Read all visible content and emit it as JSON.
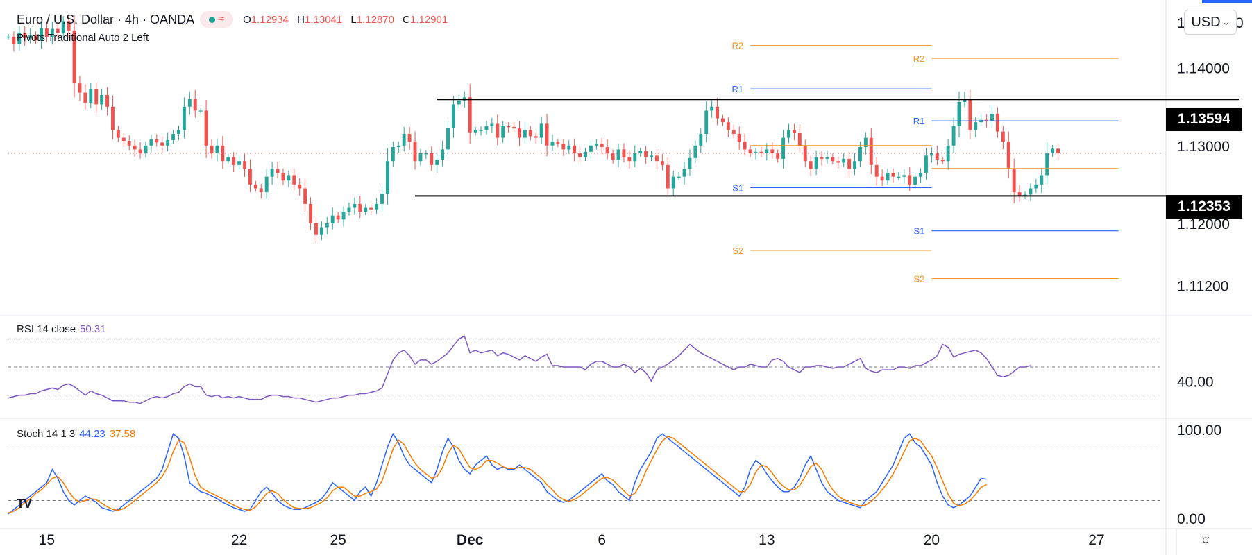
{
  "header": {
    "symbol": "Euro / U.S. Dollar · 4h · OANDA",
    "badge_icon": "wave-icon",
    "ohlc": [
      {
        "k": "O",
        "v": "1.12934"
      },
      {
        "k": "H",
        "v": "1.13041"
      },
      {
        "k": "L",
        "v": "1.12870"
      },
      {
        "k": "C",
        "v": "1.12901"
      }
    ]
  },
  "pivots_legend": "Pivots Traditional Auto 2 Left",
  "rsi_legend": {
    "label": "RSI 14 close",
    "value": "50.31"
  },
  "stoch_legend": {
    "label": "Stoch 14 1 3",
    "k": "44.23",
    "d": "37.58"
  },
  "currency_button": "USD",
  "axis_left_glyph": "1",
  "axis_right_glyph": "0",
  "price_tags": {
    "upper": "1.13594",
    "lower": "1.12353"
  },
  "colors": {
    "up": "#26a69a",
    "down": "#ef5350",
    "rsi": "#7e57c2",
    "stoch_k": "#2962ff",
    "stoch_d": "#f57c00",
    "pivot_orange": "#f7931a",
    "pivot_blue": "#2962ff"
  },
  "chart_data": {
    "type": "candlestick",
    "title": "Euro / U.S. Dollar, 4h, OANDA",
    "price_axis": {
      "range": [
        1.1084,
        1.148
      ],
      "ticks": [
        {
          "value": 1.14,
          "label": "1.14000"
        },
        {
          "value": 1.13,
          "label": "1.13000"
        },
        {
          "value": 1.12,
          "label": "1.12000"
        },
        {
          "value": 1.112,
          "label": "1.11200"
        }
      ]
    },
    "time_axis": {
      "range": [
        0,
        210
      ],
      "ticks": [
        {
          "bar": 7,
          "label": "15",
          "bold": false
        },
        {
          "bar": 42,
          "label": "22",
          "bold": false
        },
        {
          "bar": 60,
          "label": "25",
          "bold": false
        },
        {
          "bar": 84,
          "label": "Dec",
          "bold": true
        },
        {
          "bar": 108,
          "label": "6",
          "bold": false
        },
        {
          "bar": 138,
          "label": "13",
          "bold": false
        },
        {
          "bar": 168,
          "label": "20",
          "bold": false
        },
        {
          "bar": 198,
          "label": "27",
          "bold": false
        }
      ]
    },
    "range_lines": [
      {
        "value": 1.13594,
        "from_bar": 78,
        "to_bar": 210
      },
      {
        "value": 1.12353,
        "from_bar": 74,
        "to_bar": 210
      }
    ],
    "pivots": [
      {
        "label": "R2",
        "value": 1.14285,
        "from": 135,
        "to": 168,
        "color": "#f7931a"
      },
      {
        "label": "R1",
        "value": 1.13728,
        "from": 135,
        "to": 168,
        "color": "#2962ff"
      },
      {
        "label": "",
        "value": 1.13,
        "from": 135,
        "to": 168,
        "color": "#f7931a"
      },
      {
        "label": "S1",
        "value": 1.1246,
        "from": 135,
        "to": 168,
        "color": "#2962ff"
      },
      {
        "label": "S2",
        "value": 1.11653,
        "from": 135,
        "to": 168,
        "color": "#f7931a"
      },
      {
        "label": "R2",
        "value": 1.14122,
        "from": 168,
        "to": 202,
        "color": "#f7931a"
      },
      {
        "label": "R1",
        "value": 1.13318,
        "from": 168,
        "to": 202,
        "color": "#2962ff"
      },
      {
        "label": "",
        "value": 1.12705,
        "from": 168,
        "to": 202,
        "color": "#f7931a"
      },
      {
        "label": "S1",
        "value": 1.11904,
        "from": 168,
        "to": 202,
        "color": "#2962ff"
      },
      {
        "label": "S2",
        "value": 1.11291,
        "from": 168,
        "to": 202,
        "color": "#f7931a"
      }
    ],
    "last_price": 1.12901,
    "closes": [
      1.144,
      1.143,
      1.1445,
      1.1438,
      1.1442,
      1.1435,
      1.1451,
      1.144,
      1.145,
      1.1445,
      1.146,
      1.1448,
      1.138,
      1.1368,
      1.1355,
      1.1373,
      1.1353,
      1.1365,
      1.135,
      1.132,
      1.131,
      1.1306,
      1.13,
      1.1295,
      1.129,
      1.13,
      1.1308,
      1.1304,
      1.13,
      1.1307,
      1.1315,
      1.132,
      1.135,
      1.136,
      1.1345,
      1.1345,
      1.13,
      1.129,
      1.13,
      1.128,
      1.1285,
      1.1275,
      1.128,
      1.127,
      1.125,
      1.1245,
      1.124,
      1.126,
      1.127,
      1.1265,
      1.1255,
      1.1262,
      1.125,
      1.1245,
      1.1225,
      1.12,
      1.1185,
      1.1195,
      1.12,
      1.121,
      1.1205,
      1.1215,
      1.122,
      1.1225,
      1.1215,
      1.122,
      1.1218,
      1.1225,
      1.1238,
      1.128,
      1.1298,
      1.13,
      1.1315,
      1.1305,
      1.128,
      1.129,
      1.129,
      1.1275,
      1.1282,
      1.1295,
      1.1323,
      1.1353,
      1.1358,
      1.1362,
      1.1317,
      1.132,
      1.132,
      1.1325,
      1.1328,
      1.131,
      1.1325,
      1.1324,
      1.1322,
      1.131,
      1.132,
      1.1312,
      1.131,
      1.1328,
      1.13,
      1.1305,
      1.1302,
      1.1295,
      1.13,
      1.129,
      1.1285,
      1.1292,
      1.13,
      1.1302,
      1.1298,
      1.129,
      1.1282,
      1.1295,
      1.1285,
      1.128,
      1.129,
      1.1293,
      1.1285,
      1.1287,
      1.128,
      1.1275,
      1.1245,
      1.126,
      1.126,
      1.127,
      1.1284,
      1.13,
      1.1315,
      1.1345,
      1.135,
      1.1335,
      1.133,
      1.132,
      1.1315,
      1.1305,
      1.1295,
      1.129,
      1.1292,
      1.129,
      1.1295,
      1.129,
      1.1283,
      1.131,
      1.132,
      1.1316,
      1.13,
      1.128,
      1.127,
      1.1285,
      1.1283,
      1.1285,
      1.128,
      1.1278,
      1.1283,
      1.127,
      1.128,
      1.1298,
      1.131,
      1.1275,
      1.126,
      1.1255,
      1.1265,
      1.126,
      1.126,
      1.1262,
      1.125,
      1.126,
      1.1265,
      1.1287,
      1.129,
      1.1282,
      1.128,
      1.13,
      1.1325,
      1.1356,
      1.136,
      1.132,
      1.133,
      1.1333,
      1.1332,
      1.1341,
      1.1318,
      1.1305,
      1.127,
      1.124,
      1.1235,
      1.1237,
      1.1245,
      1.125,
      1.1262,
      1.129,
      1.1296,
      1.129
    ],
    "rsi": {
      "range": [
        15,
        85
      ],
      "levels": [
        70,
        50,
        30
      ],
      "tick_label": "40.00",
      "tick_value": 40,
      "values": [
        28,
        29,
        30,
        30,
        31,
        31,
        33,
        34,
        35,
        34,
        37,
        38,
        36,
        33,
        30,
        33,
        31,
        30,
        28,
        26,
        26,
        26,
        25,
        25,
        24,
        26,
        28,
        29,
        28,
        29,
        31,
        32,
        36,
        38,
        36,
        36,
        30,
        29,
        30,
        28,
        29,
        28,
        29,
        28,
        27,
        27,
        27,
        29,
        30,
        30,
        29,
        29,
        28,
        28,
        27,
        26,
        25,
        26,
        27,
        28,
        28,
        29,
        30,
        30,
        31,
        31,
        32,
        33,
        35,
        45,
        55,
        60,
        62,
        58,
        52,
        55,
        55,
        52,
        54,
        57,
        60,
        65,
        70,
        72,
        60,
        62,
        60,
        61,
        62,
        58,
        60,
        59,
        57,
        55,
        58,
        56,
        54,
        57,
        59,
        51,
        51,
        50,
        50,
        50,
        50,
        48,
        52,
        54,
        54,
        52,
        50,
        50,
        52,
        50,
        46,
        49,
        46,
        40,
        48,
        50,
        52,
        55,
        58,
        62,
        66,
        63,
        60,
        58,
        56,
        54,
        52,
        50,
        48,
        50,
        50,
        52,
        51,
        50,
        50,
        55,
        56,
        54,
        50,
        48,
        46,
        50,
        50,
        51,
        51,
        50,
        49,
        50,
        50,
        52,
        54,
        56,
        49,
        47,
        46,
        48,
        48,
        48,
        50,
        50,
        49,
        51,
        51,
        53,
        55,
        58,
        66,
        64,
        57,
        59,
        60,
        61,
        62,
        60,
        56,
        50,
        44,
        43,
        44,
        47,
        50,
        50,
        51
      ],
      "value_label": "50.31"
    },
    "stoch": {
      "range": [
        -10,
        110
      ],
      "levels": [
        80,
        20
      ],
      "ticks": [
        {
          "value": 100,
          "label": "100.00"
        },
        {
          "value": 0,
          "label": "0.00"
        }
      ],
      "k": [
        5,
        10,
        15,
        20,
        25,
        30,
        35,
        40,
        55,
        45,
        30,
        20,
        15,
        20,
        25,
        22,
        18,
        12,
        10,
        8,
        10,
        15,
        20,
        25,
        30,
        35,
        40,
        45,
        55,
        75,
        95,
        90,
        70,
        40,
        35,
        30,
        28,
        25,
        22,
        18,
        15,
        12,
        10,
        8,
        10,
        20,
        30,
        35,
        28,
        20,
        15,
        12,
        10,
        10,
        12,
        15,
        18,
        22,
        30,
        40,
        35,
        30,
        25,
        20,
        30,
        35,
        25,
        40,
        60,
        80,
        95,
        85,
        70,
        60,
        55,
        50,
        45,
        40,
        55,
        75,
        90,
        80,
        65,
        55,
        50,
        60,
        65,
        70,
        60,
        55,
        58,
        55,
        55,
        60,
        55,
        50,
        45,
        40,
        30,
        25,
        20,
        18,
        20,
        25,
        30,
        35,
        40,
        45,
        50,
        42,
        38,
        30,
        25,
        20,
        40,
        55,
        65,
        75,
        90,
        95,
        90,
        85,
        80,
        75,
        70,
        65,
        60,
        55,
        50,
        45,
        40,
        35,
        30,
        25,
        35,
        55,
        65,
        60,
        50,
        42,
        35,
        30,
        30,
        35,
        45,
        60,
        70,
        55,
        40,
        30,
        25,
        20,
        18,
        16,
        14,
        12,
        20,
        25,
        30,
        40,
        50,
        60,
        75,
        90,
        95,
        85,
        80,
        70,
        60,
        40,
        25,
        15,
        12,
        15,
        20,
        25,
        35,
        45,
        44
      ],
      "d": [
        6,
        8,
        12,
        18,
        22,
        28,
        32,
        38,
        45,
        47,
        40,
        30,
        22,
        18,
        20,
        22,
        21,
        17,
        13,
        10,
        9,
        11,
        15,
        20,
        25,
        30,
        35,
        40,
        47,
        58,
        75,
        88,
        85,
        68,
        48,
        35,
        31,
        28,
        25,
        22,
        18,
        15,
        12,
        10,
        9,
        13,
        20,
        28,
        31,
        28,
        21,
        16,
        12,
        11,
        11,
        12,
        15,
        18,
        23,
        31,
        35,
        35,
        30,
        25,
        25,
        28,
        30,
        33,
        42,
        60,
        78,
        88,
        83,
        72,
        62,
        55,
        50,
        45,
        47,
        57,
        73,
        82,
        78,
        67,
        57,
        55,
        58,
        65,
        65,
        62,
        58,
        56,
        56,
        57,
        57,
        55,
        50,
        45,
        38,
        32,
        25,
        21,
        19,
        21,
        25,
        30,
        35,
        40,
        45,
        46,
        43,
        37,
        31,
        25,
        28,
        38,
        53,
        65,
        77,
        87,
        92,
        90,
        85,
        80,
        75,
        70,
        65,
        60,
        55,
        50,
        45,
        40,
        35,
        30,
        30,
        38,
        52,
        60,
        58,
        51,
        42,
        36,
        32,
        32,
        37,
        47,
        58,
        62,
        55,
        42,
        32,
        25,
        21,
        18,
        16,
        14,
        15,
        19,
        25,
        32,
        40,
        50,
        62,
        75,
        87,
        90,
        87,
        78,
        70,
        57,
        42,
        27,
        17,
        14,
        16,
        20,
        27,
        35,
        38
      ],
      "k_label": "44.23",
      "d_label": "37.58"
    }
  }
}
